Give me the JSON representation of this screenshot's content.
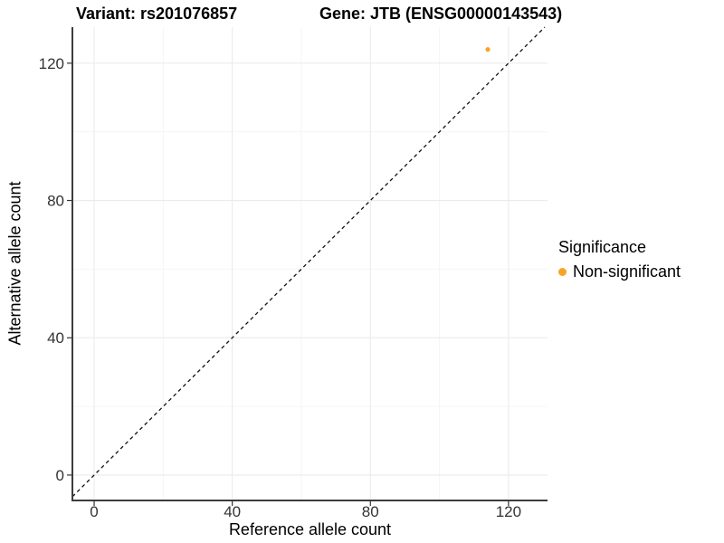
{
  "chart_data": {
    "type": "scatter",
    "title_left": "Variant: rs201076857",
    "title_right": "Gene: JTB (ENSG00000143543)",
    "xlabel": "Reference allele count",
    "ylabel": "Alternative allele count",
    "xlim": [
      -6.3,
      131.3
    ],
    "ylim": [
      -7.4,
      130.5
    ],
    "x_ticks": [
      0,
      40,
      80,
      120
    ],
    "y_ticks": [
      0,
      40,
      80,
      120
    ],
    "x_minor_ticks": [
      20,
      60,
      100
    ],
    "y_minor_ticks": [
      20,
      60,
      100
    ],
    "grid": true,
    "series": [
      {
        "name": "Non-significant",
        "color": "#F9A326",
        "points": [
          {
            "x": 114,
            "y": 124
          }
        ]
      }
    ],
    "reference_line": {
      "slope": 1,
      "intercept": 0,
      "style": "dashed",
      "color": "#111111"
    },
    "legend": {
      "title": "Significance",
      "position": "right",
      "items": [
        {
          "label": "Non-significant",
          "color": "#F9A326"
        }
      ]
    },
    "palette": {
      "grid_major": "#EBEBEB",
      "grid_minor": "#F4F4F4",
      "axis_line": "#3C3C3C",
      "tick_text": "#333333",
      "point_orange": "#F9A326"
    }
  }
}
